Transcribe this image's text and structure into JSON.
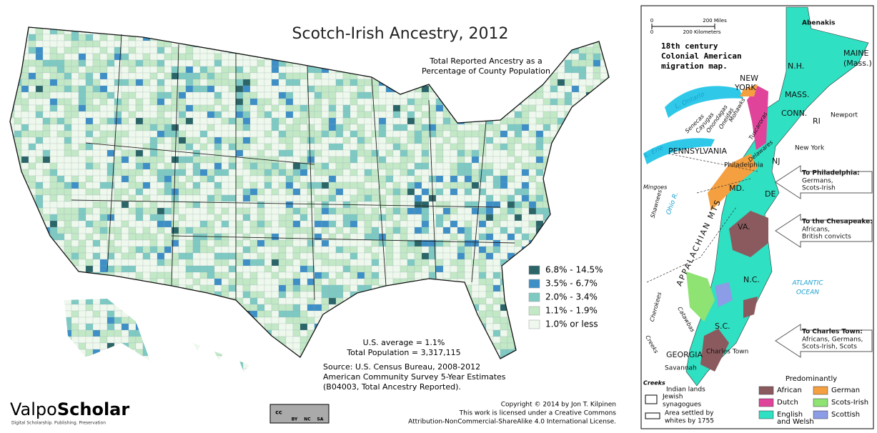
{
  "left_map": {
    "title": "Scotch-Irish Ancestry, 2012",
    "subtitle": [
      "Total Reported Ancestry as a",
      "Percentage of County Population"
    ],
    "legend": [
      {
        "label": "6.8% - 14.5%",
        "color": "#2b6567"
      },
      {
        "label": "3.5% - 6.7%",
        "color": "#3d8fc6"
      },
      {
        "label": "2.0% - 3.4%",
        "color": "#7ecac3"
      },
      {
        "label": "1.1% - 1.9%",
        "color": "#c2e8c6"
      },
      {
        "label": "1.0% or less",
        "color": "#eef8ec"
      }
    ],
    "stats": [
      "U.S. average = 1.1%",
      "Total Population = 3,317,115"
    ],
    "source": [
      "Source:  U.S. Census Bureau, 2008-2012",
      "American Community Survey 5-Year Estimates",
      "(B04003, Total Ancestry Reported)."
    ],
    "copyright": [
      "Copyright © 2014 by Jon T. Kilpinen",
      "This work is licensed under a Creative Commons",
      "Attribution-NonCommercial-ShareAlike 4.0 International License."
    ],
    "logo": {
      "light": "Valpo",
      "bold": "Scholar",
      "tagline": "Digital Scholarship. Publishing. Preservation"
    },
    "cc_badge": [
      "cc",
      "BY",
      "NC",
      "SA"
    ]
  },
  "right_map": {
    "title": [
      "18th century",
      "Colonial American",
      "migration map."
    ],
    "scale": [
      "0",
      "200 Miles",
      "0",
      "200 Kilometers"
    ],
    "places": [
      "Abenakis",
      "MAINE",
      "(Mass.)",
      "N.H.",
      "NEW",
      "YORK",
      "MASS.",
      "CONN.",
      "RI",
      "Newport",
      "New York",
      "NJ",
      "Philadelphia",
      "PENNSYLVANIA",
      "MD.",
      "DE",
      "VA.",
      "N.C.",
      "S.C.",
      "GEORGIA",
      "Charles Town",
      "Savannah"
    ],
    "tribes": [
      "Senecas",
      "Cayugas",
      "Onondagas",
      "Oneidas",
      "Mohawks",
      "Tuscaroras",
      "Delawares",
      "Mingoes",
      "Shawnees",
      "Cherokees",
      "Catawbas",
      "Creeks"
    ],
    "water": [
      "L. Ontario",
      "L. Erie",
      "Ohio R.",
      "ATLANTIC",
      "OCEAN"
    ],
    "mountains": "APPALACHIAN MTS",
    "arrows": [
      {
        "head": "To Philadelphia:",
        "lines": [
          "Germans,",
          "Scots-Irish"
        ]
      },
      {
        "head": "To the Chesapeake:",
        "lines": [
          "Africans,",
          "British convicts"
        ]
      },
      {
        "head": "To Charles Town:",
        "lines": [
          "Africans, Germans,",
          "Scots-Irish, Scots"
        ]
      }
    ],
    "legend_title": "Predominantly",
    "legend": [
      {
        "label": [
          "African"
        ],
        "color": "#8b5a5e"
      },
      {
        "label": [
          "Dutch"
        ],
        "color": "#e0449a"
      },
      {
        "label": [
          "English",
          "and Welsh"
        ],
        "color": "#2fe0c2"
      },
      {
        "label": [
          "German"
        ],
        "color": "#f5a040"
      },
      {
        "label": [
          "Scots-Irish"
        ],
        "color": "#8ee372"
      },
      {
        "label": [
          "Scottish"
        ],
        "color": "#8c9ce6"
      }
    ],
    "key": {
      "creeks": "Creeks",
      "indian": "Indian lands",
      "jewish": [
        "Jewish",
        "synagogues"
      ],
      "area": [
        "Area settled by",
        "whites by 1755"
      ]
    }
  }
}
